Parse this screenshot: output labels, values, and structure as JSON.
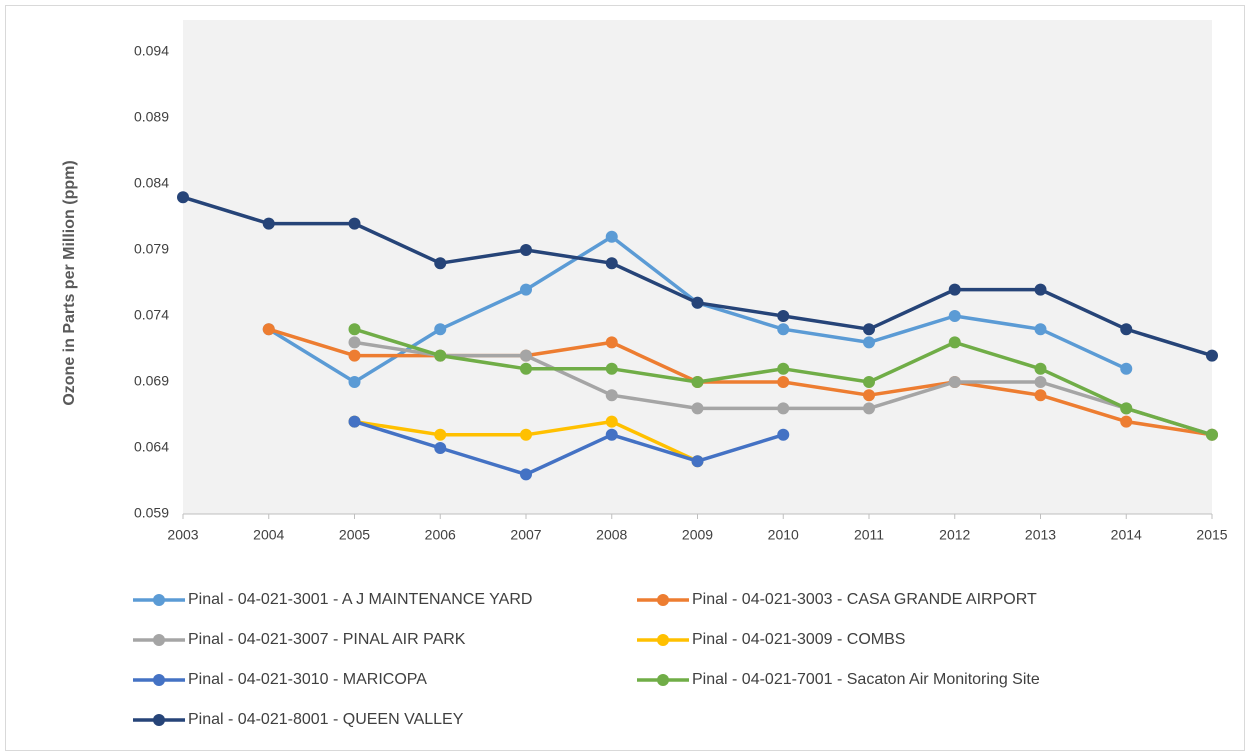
{
  "chart_data": {
    "type": "line",
    "y_label": "Ozone in Parts per Million (ppm)",
    "x": [
      2003,
      2004,
      2005,
      2006,
      2007,
      2008,
      2009,
      2010,
      2011,
      2012,
      2013,
      2014,
      2015
    ],
    "xlim": [
      2003,
      2015
    ],
    "xticks": [
      2003,
      2004,
      2005,
      2006,
      2007,
      2008,
      2009,
      2010,
      2011,
      2012,
      2013,
      2014,
      2015
    ],
    "ylim": [
      0.059,
      0.094
    ],
    "yticks": [
      0.059,
      0.064,
      0.069,
      0.074,
      0.079,
      0.084,
      0.089,
      0.094
    ],
    "series": [
      {
        "name": "Pinal - 04-021-3001 - A J MAINTENANCE YARD",
        "color": "#5b9bd5",
        "values": [
          null,
          0.073,
          0.069,
          0.073,
          0.076,
          0.08,
          0.075,
          0.073,
          0.072,
          0.074,
          0.073,
          0.07,
          null
        ]
      },
      {
        "name": "Pinal - 04-021-3003 - CASA GRANDE AIRPORT",
        "color": "#ed7d31",
        "values": [
          null,
          0.073,
          0.071,
          0.071,
          0.071,
          0.072,
          0.069,
          0.069,
          0.068,
          0.069,
          0.068,
          0.066,
          0.065
        ]
      },
      {
        "name": "Pinal - 04-021-3007 - PINAL AIR PARK",
        "color": "#a5a5a5",
        "values": [
          null,
          null,
          0.072,
          0.071,
          0.071,
          0.068,
          0.067,
          0.067,
          0.067,
          0.069,
          0.069,
          0.067,
          0.065
        ]
      },
      {
        "name": "Pinal - 04-021-3009 - COMBS",
        "color": "#ffc000",
        "values": [
          null,
          null,
          0.066,
          0.065,
          0.065,
          0.066,
          0.063,
          null,
          null,
          null,
          null,
          null,
          null
        ]
      },
      {
        "name": "Pinal - 04-021-3010 - MARICOPA",
        "color": "#4472c4",
        "values": [
          null,
          null,
          0.066,
          0.064,
          0.062,
          0.065,
          0.063,
          0.065,
          null,
          null,
          null,
          null,
          null
        ]
      },
      {
        "name": "Pinal - 04-021-7001 - Sacaton Air Monitoring Site",
        "color": "#70ad47",
        "values": [
          null,
          null,
          0.073,
          0.071,
          0.07,
          0.07,
          0.069,
          0.07,
          0.069,
          0.072,
          0.07,
          0.067,
          0.065
        ]
      },
      {
        "name": "Pinal - 04-021-8001 - QUEEN VALLEY",
        "color": "#264478",
        "values": [
          0.083,
          0.081,
          0.081,
          0.078,
          0.079,
          0.078,
          0.075,
          0.074,
          0.073,
          0.076,
          0.076,
          0.073,
          0.071
        ]
      }
    ]
  }
}
